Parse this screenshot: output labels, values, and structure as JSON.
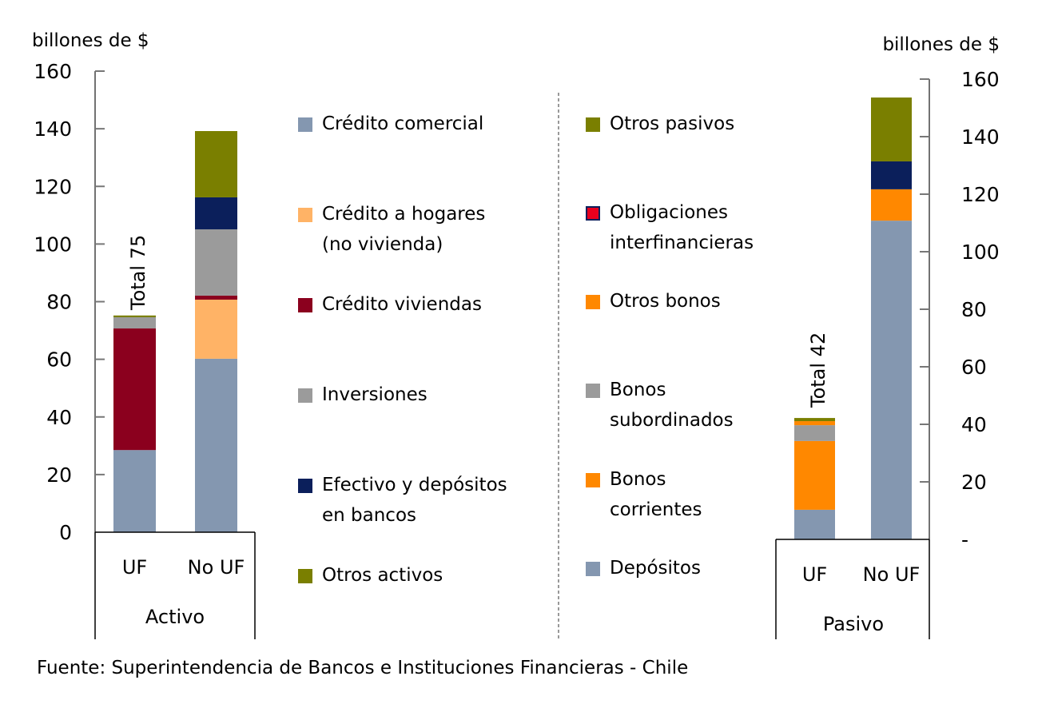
{
  "chart_data": [
    {
      "type": "bar",
      "stacked": true,
      "title": "",
      "group_label": "Activo",
      "ylabel": "billones de $",
      "ylim": [
        0,
        160
      ],
      "yticks": [
        0,
        20,
        40,
        60,
        80,
        100,
        120,
        140,
        160
      ],
      "ytick_labels": [
        "0",
        "20",
        "40",
        "60",
        "80",
        "100",
        "120",
        "140",
        "160"
      ],
      "axis_side": "left",
      "categories": [
        "UF",
        "No UF"
      ],
      "annotation": "Total 75",
      "series": [
        {
          "name": "Crédito comercial",
          "color": "#8497B0",
          "values": [
            28.5,
            60.2
          ]
        },
        {
          "name": "Crédito a hogares (no vivienda)",
          "color": "#FFB366",
          "values": [
            0,
            20.5
          ]
        },
        {
          "name": "Crédito viviendas",
          "color": "#8B001E",
          "values": [
            42.2,
            1.4
          ]
        },
        {
          "name": "Inversiones",
          "color": "#9B9B9B",
          "values": [
            3.9,
            23.0
          ]
        },
        {
          "name": "Efectivo y depósitos en bancos",
          "color": "#0B1F5B",
          "values": [
            0,
            11.1
          ]
        },
        {
          "name": "Otros activos",
          "color": "#7A7F00",
          "values": [
            0.6,
            23.0
          ]
        }
      ]
    },
    {
      "type": "bar",
      "stacked": true,
      "title": "",
      "group_label": "Pasivo",
      "ylabel": "billones de $",
      "ylim": [
        0,
        160
      ],
      "yticks": [
        0,
        20,
        40,
        60,
        80,
        100,
        120,
        140,
        160
      ],
      "ytick_labels": [
        "-",
        "20",
        "40",
        "60",
        "80",
        "100",
        "120",
        "140",
        "160"
      ],
      "axis_side": "right",
      "categories": [
        "UF",
        "No UF"
      ],
      "annotation": "Total 42",
      "series": [
        {
          "name": "Depósitos",
          "color": "#8497B0",
          "values": [
            10.3,
            110.8
          ]
        },
        {
          "name": "Bonos corrientes",
          "color": "#FF8800",
          "values": [
            23.9,
            0
          ]
        },
        {
          "name": "Bonos subordinados",
          "color": "#9B9B9B",
          "values": [
            5.5,
            0
          ]
        },
        {
          "name": "Otros bonos",
          "color": "#FF8800",
          "values": [
            1.4,
            10.9
          ]
        },
        {
          "name": "Obligaciones interfinancieras",
          "color": "#0B1F5B",
          "values": [
            0,
            9.7
          ]
        },
        {
          "name": "Otros pasivos",
          "color": "#7A7F00",
          "values": [
            1.1,
            22.2
          ]
        }
      ]
    }
  ],
  "legend_left": [
    {
      "lines": [
        "Crédito comercial"
      ],
      "color": "#8497B0"
    },
    {
      "lines": [
        "Crédito a hogares",
        "(no vivienda)"
      ],
      "color": "#FFB366"
    },
    {
      "lines": [
        "Crédito viviendas"
      ],
      "color": "#8B001E"
    },
    {
      "lines": [
        "Inversiones"
      ],
      "color": "#9B9B9B"
    },
    {
      "lines": [
        "Efectivo y depósitos",
        "en bancos"
      ],
      "color": "#0B1F5B"
    },
    {
      "lines": [
        "Otros activos"
      ],
      "color": "#7A7F00"
    }
  ],
  "legend_right": [
    {
      "lines": [
        "Otros pasivos"
      ],
      "color": "#7A7F00"
    },
    {
      "lines": [
        "Obligaciones",
        "interfinancieras"
      ],
      "color": "#E8001E",
      "border": "#0B1F5B"
    },
    {
      "lines": [
        "Otros bonos"
      ],
      "color": "#FF8800"
    },
    {
      "lines": [
        "Bonos",
        "subordinados"
      ],
      "color": "#9B9B9B"
    },
    {
      "lines": [
        "Bonos",
        "corrientes"
      ],
      "color": "#FF8800"
    },
    {
      "lines": [
        "Depósitos"
      ],
      "color": "#8497B0"
    }
  ],
  "footer": "Fuente: Superintendencia  de Bancos e Instituciones Financieras - Chile"
}
